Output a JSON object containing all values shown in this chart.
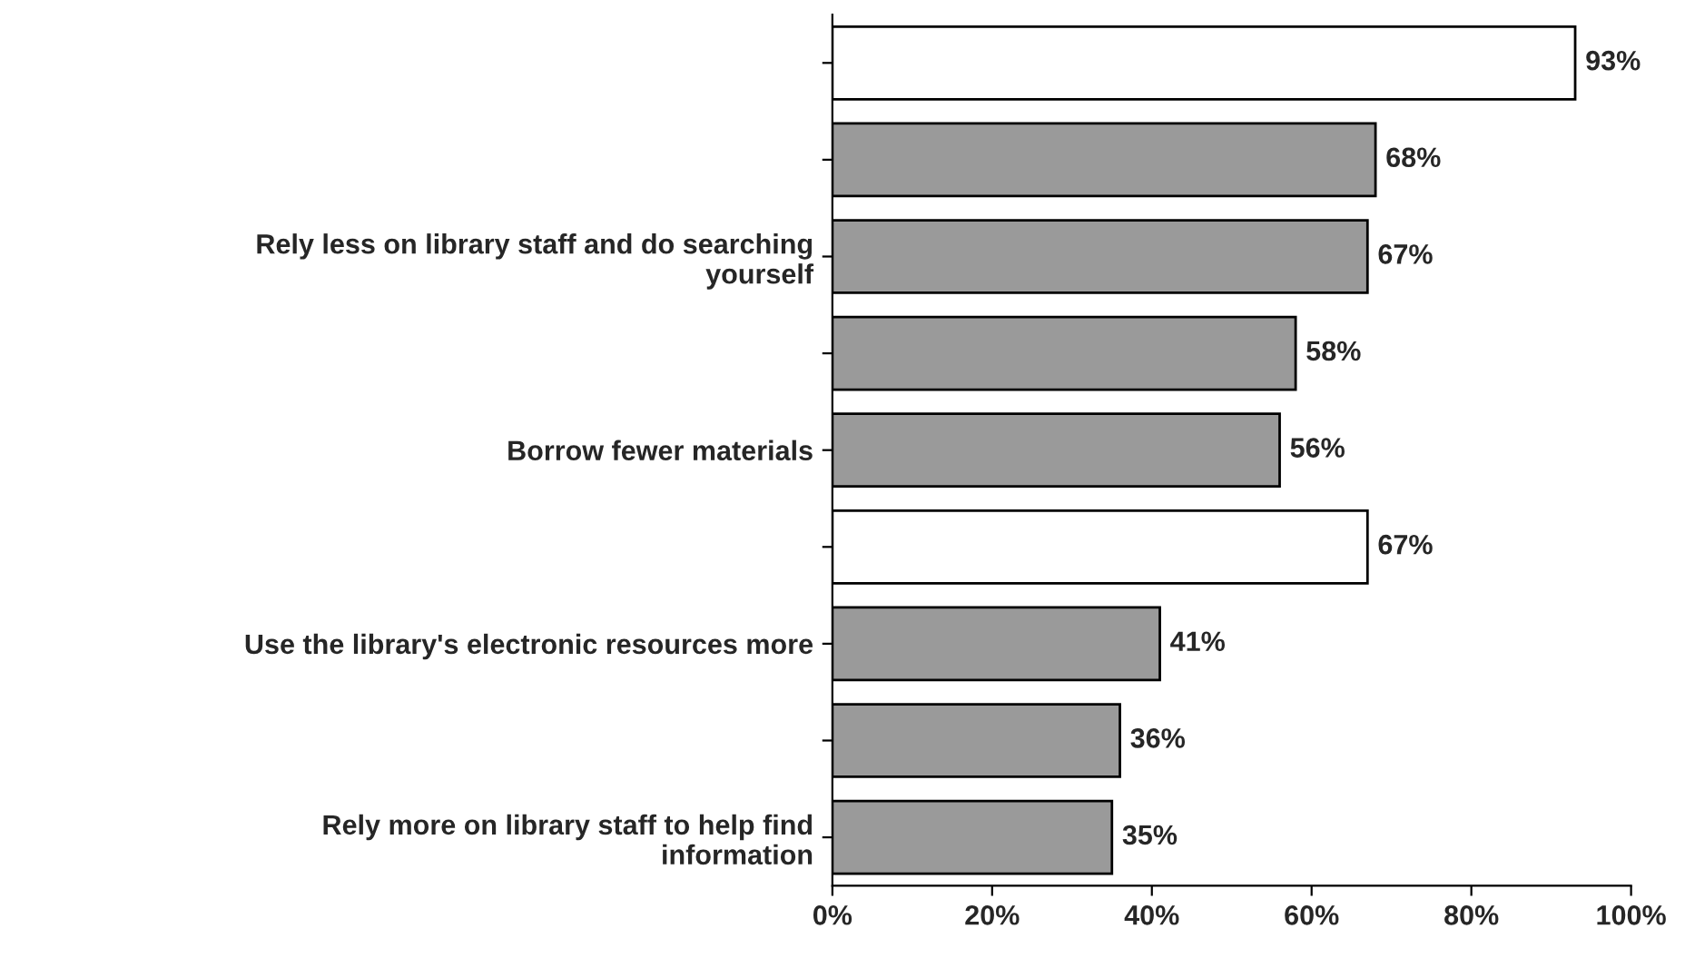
{
  "chart_data": {
    "type": "bar",
    "orientation": "horizontal",
    "categories": [
      null,
      null,
      "Rely less on library staff and do searching\nyourself",
      null,
      "Borrow fewer materials",
      null,
      "Use the library's electronic resources more",
      null,
      "Rely more on library staff to help find\ninformation"
    ],
    "values": [
      93,
      68,
      67,
      58,
      56,
      67,
      41,
      36,
      35
    ],
    "colors": [
      "#ffffff",
      "#9a9a9a",
      "#9a9a9a",
      "#9a9a9a",
      "#9a9a9a",
      "#ffffff",
      "#9a9a9a",
      "#9a9a9a",
      "#9a9a9a"
    ],
    "value_labels": [
      "93%",
      "68%",
      "67%",
      "58%",
      "56%",
      "67%",
      "41%",
      "36%",
      "35%"
    ],
    "xlim": [
      0,
      100
    ],
    "xticks": [
      {
        "value": 0,
        "label": "0%"
      },
      {
        "value": 20,
        "label": "20%"
      },
      {
        "value": 40,
        "label": "40%"
      },
      {
        "value": 60,
        "label": "60%"
      },
      {
        "value": 80,
        "label": "80%"
      },
      {
        "value": 100,
        "label": "100%"
      }
    ],
    "grid": false,
    "legend": false
  }
}
